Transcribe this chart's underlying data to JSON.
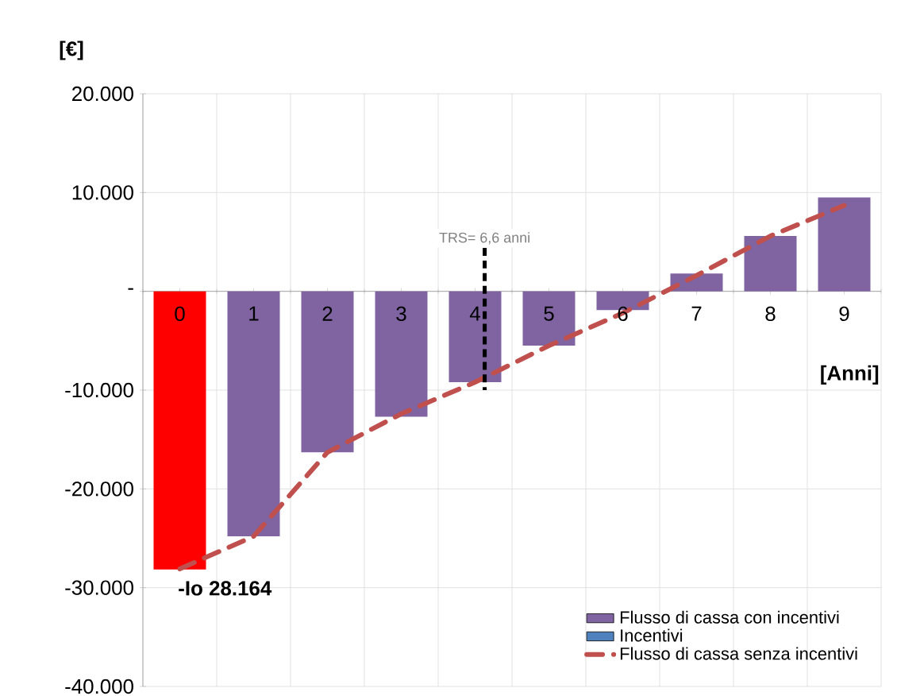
{
  "chart_data": {
    "type": "bar",
    "ylabel": "[€]",
    "xlabel": "[Anni]",
    "categories": [
      "0",
      "1",
      "2",
      "3",
      "4",
      "5",
      "6",
      "7",
      "8",
      "9"
    ],
    "series": [
      {
        "name": "Flusso di cassa con incentivi",
        "color": "#8064a2",
        "colors": [
          "#ff0000",
          "#8064a2",
          "#8064a2",
          "#8064a2",
          "#8064a2",
          "#8064a2",
          "#8064a2",
          "#8064a2",
          "#8064a2",
          "#8064a2"
        ],
        "values": [
          -28164,
          -24800,
          -16300,
          -12700,
          -9200,
          -5500,
          -1900,
          1800,
          5600,
          9500
        ]
      },
      {
        "name": "Incentivi",
        "color": "#4f81bd",
        "values": [
          null,
          null,
          null,
          null,
          null,
          null,
          null,
          null,
          null,
          null
        ]
      },
      {
        "name": "Flusso di cassa senza incentivi",
        "type": "line",
        "color": "#c0504d",
        "line_style": "dashed",
        "values": [
          -28100,
          -24800,
          -16300,
          -12400,
          -9200,
          -5500,
          -2200,
          1600,
          5600,
          8700
        ]
      }
    ],
    "ylim": [
      -40000,
      20000
    ],
    "yticks": [
      {
        "value": -40000,
        "label": "-40.000"
      },
      {
        "value": -30000,
        "label": "-30.000"
      },
      {
        "value": -20000,
        "label": "-20.000"
      },
      {
        "value": -10000,
        "label": "-10.000"
      },
      {
        "value": 0,
        "label": "-"
      },
      {
        "value": 10000,
        "label": "10.000"
      },
      {
        "value": 20000,
        "label": "20.000"
      }
    ],
    "annotations": [
      {
        "text": "-Io 28.164",
        "x": "0",
        "y": -28164
      },
      "TRS= 6,6 anni"
    ],
    "grid": true,
    "legend": "bottom right"
  }
}
